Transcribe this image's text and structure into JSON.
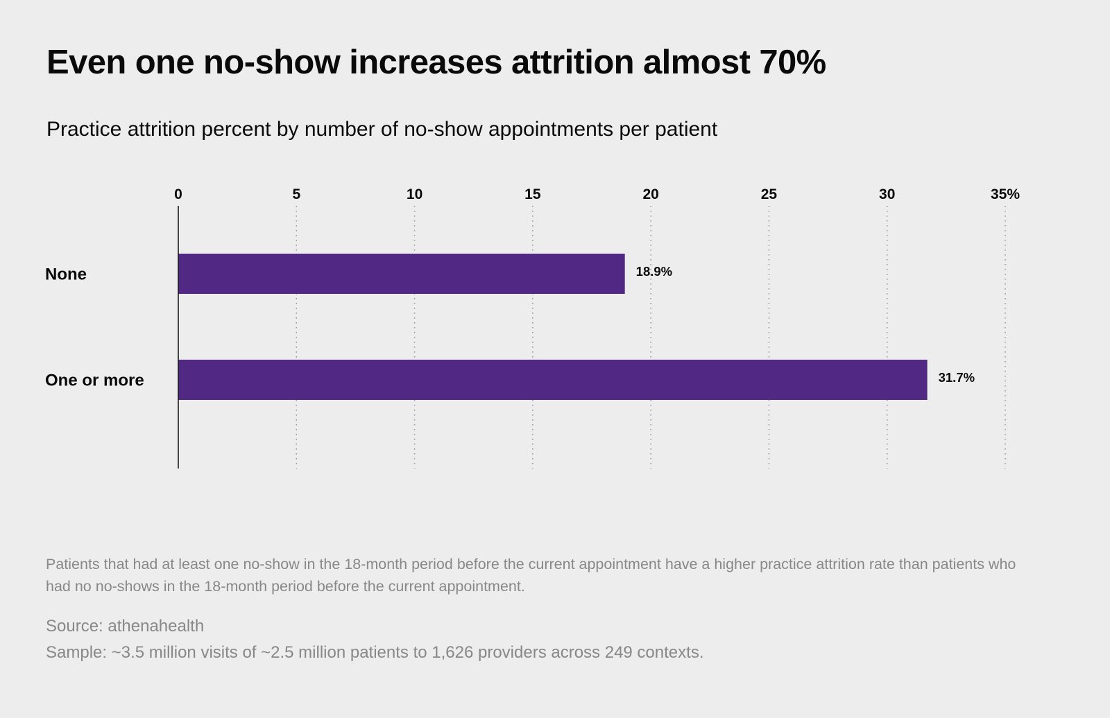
{
  "chart_data": {
    "type": "bar",
    "orientation": "horizontal",
    "title": "Even one no-show increases attrition almost 70%",
    "subtitle": "Practice attrition percent by number of no-show appointments per patient",
    "categories": [
      "None",
      "One or more"
    ],
    "values": [
      18.9,
      31.7
    ],
    "data_labels": [
      "18.9%",
      "31.7%"
    ],
    "xlim": [
      0,
      35
    ],
    "x_ticks": [
      0,
      5,
      10,
      15,
      20,
      25,
      30,
      35
    ],
    "x_tick_labels": [
      "0",
      "5",
      "10",
      "15",
      "20",
      "25",
      "30",
      "35%"
    ],
    "x_axis_position": "top",
    "grid": "vertical dotted",
    "legend": "none",
    "bar_color": "#512984"
  },
  "footnote": "Patients that had at least one no-show in the 18-month period before the current appointment have a higher practice attrition rate than patients who had no no-shows in the 18-month period before the current appointment.",
  "source": "Source: athenahealth",
  "sample": "Sample: ~3.5 million visits of ~2.5 million patients to 1,626 providers across 249 contexts."
}
